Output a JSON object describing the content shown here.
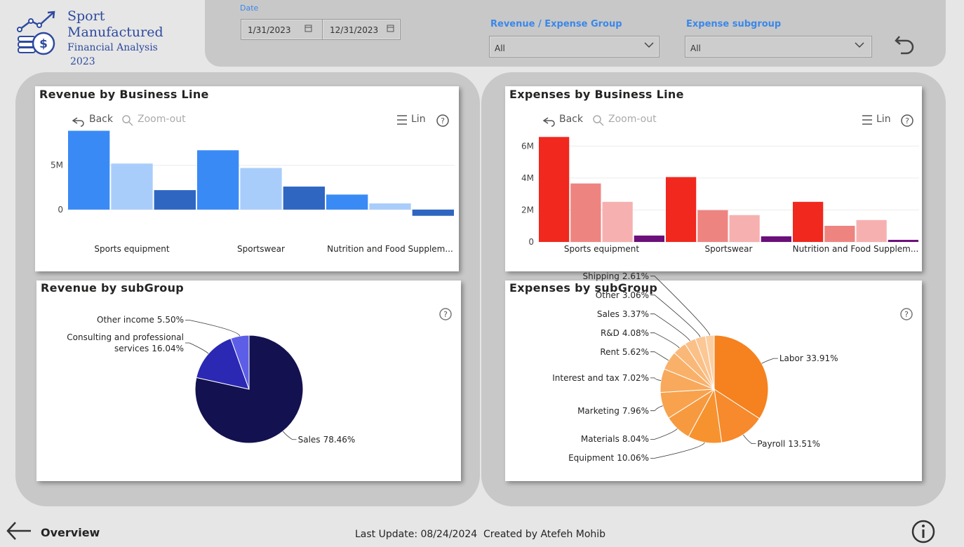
{
  "header": {
    "title_line1": "Sport",
    "title_line2": "Manufactured",
    "subtitle": "Financial Analysis",
    "year": "2023"
  },
  "filters": {
    "date_label": "Date",
    "date_start": "1/31/2023",
    "date_end": "12/31/2023",
    "group_label": "Revenue / Expense Group",
    "group_value": "All",
    "subgroup_label": "Expense subgroup",
    "subgroup_value": "All"
  },
  "toolbar": {
    "back": "Back",
    "zoom_out": "Zoom-out",
    "list": "Lin"
  },
  "chart_data": [
    {
      "type": "bar",
      "title": "Revenue by Business Line",
      "categories": [
        "Sports equipment",
        "Sportswear",
        "Nutrition and Food Supplem..."
      ],
      "series": [
        {
          "color": "#3a8af6",
          "values": [
            8900000,
            6700000,
            1700000
          ]
        },
        {
          "color": "#a9cdfb",
          "values": [
            5200000,
            4700000,
            700000
          ]
        },
        {
          "color": "#2e66c2",
          "values": [
            2200000,
            2600000,
            -700000
          ]
        }
      ],
      "ylim": [
        -800000,
        10600000
      ],
      "yticks": [
        0,
        {
          "value": 5000000,
          "label": "5M"
        }
      ],
      "grid": true
    },
    {
      "type": "bar",
      "title": "Expenses by Business Line",
      "categories": [
        "Sports equipment",
        "Sportswear",
        "Nutrition and Food Supplem..."
      ],
      "series": [
        {
          "color": "#f0281e",
          "values": [
            6570000,
            4060000,
            2510000
          ]
        },
        {
          "color": "#ee8480",
          "values": [
            3660000,
            1990000,
            1010000
          ]
        },
        {
          "color": "#f6b0b0",
          "values": [
            2510000,
            1680000,
            1370000
          ]
        },
        {
          "color": "#6b0f7a",
          "values": [
            400000,
            350000,
            130000
          ]
        }
      ],
      "ylim": [
        0,
        7900000
      ],
      "yticks": [
        0,
        {
          "value": 2000000,
          "label": "2M"
        },
        {
          "value": 4000000,
          "label": "4M"
        },
        {
          "value": 6000000,
          "label": "6M"
        }
      ],
      "grid": true
    },
    {
      "type": "pie",
      "title": "Revenue by subGroup",
      "categories": [
        "Sales",
        "Consulting and professional services",
        "Other income"
      ],
      "values": [
        78.46,
        16.04,
        5.5
      ],
      "value_labels": [
        "78.46%",
        "16.04%",
        "5.50%"
      ],
      "colors": [
        "#13114f",
        "#2b28b3",
        "#5d5ee8"
      ]
    },
    {
      "type": "pie",
      "title": "Expenses by subGroup",
      "categories": [
        "Labor",
        "Payroll",
        "Equipment",
        "Materials",
        "Marketing",
        "Interest and tax",
        "Rent",
        "R&D",
        "Sales",
        "Other",
        "Shipping"
      ],
      "values": [
        33.91,
        13.51,
        10.06,
        8.04,
        7.96,
        7.02,
        5.62,
        4.08,
        3.37,
        3.06,
        2.61
      ],
      "value_labels": [
        "33.91%",
        "13.51%",
        "10.06%",
        "8.04%",
        "7.96%",
        "7.02%",
        "5.62%",
        "4.08%",
        "3.37%",
        "3.06%",
        "2.61%"
      ],
      "colors": [
        "#f5821f",
        "#f68a2c",
        "#f7932f",
        "#f79a3f",
        "#f8a24e",
        "#f8a95c",
        "#f9b16a",
        "#fab878",
        "#fbc087",
        "#fbc795",
        "#fccfa3"
      ]
    }
  ],
  "footer": {
    "page": "Overview",
    "last_update": "Last Update: 08/24/2024",
    "author": "Created by Atefeh Mohib"
  }
}
